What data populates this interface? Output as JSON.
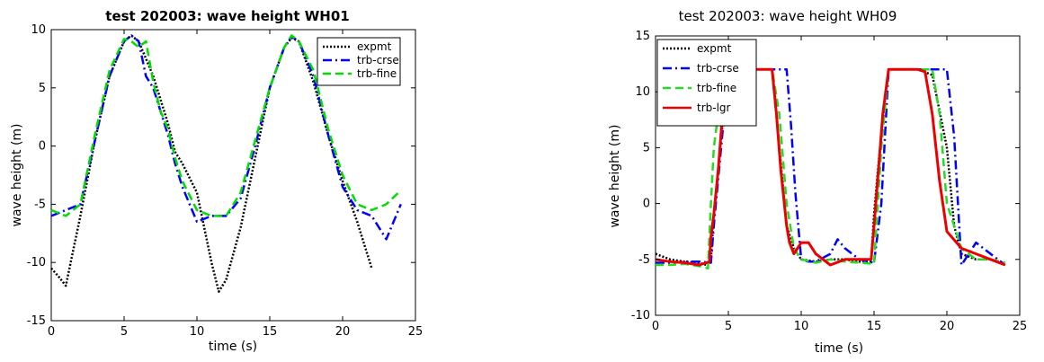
{
  "chart_data": [
    {
      "type": "line",
      "title": "test 202003: wave height WH01",
      "xlabel": "time (s)",
      "ylabel": "wave height (m)",
      "xlim": [
        0,
        25
      ],
      "ylim": [
        -15,
        10
      ],
      "xticks": [
        0,
        5,
        10,
        15,
        20,
        25
      ],
      "yticks": [
        -15,
        -10,
        -5,
        0,
        5,
        10
      ],
      "legend_position": "top-right",
      "series": [
        {
          "name": "expmt",
          "color": "#000000",
          "dash": "dot",
          "x": [
            0,
            0.5,
            1.0,
            1.5,
            2.0,
            3.0,
            4.0,
            5.0,
            5.5,
            6.0,
            7.0,
            8.0,
            8.5,
            9.0,
            10.0,
            11.0,
            11.5,
            12.0,
            13.0,
            14.0,
            15.0,
            16.0,
            16.5,
            17.0,
            18.0,
            19.0,
            20.0,
            21.0,
            22.0
          ],
          "y": [
            -10.5,
            -11.2,
            -12.0,
            -9.0,
            -6.0,
            0.5,
            6.0,
            9.0,
            9.5,
            9.0,
            6.0,
            2.0,
            -0.5,
            -1.5,
            -4.0,
            -10.0,
            -12.5,
            -11.5,
            -7.0,
            -1.0,
            5.0,
            8.5,
            9.3,
            9.0,
            5.5,
            1.0,
            -3.0,
            -6.5,
            -10.5
          ]
        },
        {
          "name": "trb-crse",
          "color": "#0000ff",
          "dash": "dashdot",
          "x": [
            0,
            1.0,
            2.0,
            3.0,
            4.0,
            5.0,
            5.5,
            6.0,
            6.5,
            7.0,
            7.5,
            8.0,
            8.5,
            9.0,
            10.0,
            11.0,
            12.0,
            13.0,
            14.0,
            15.0,
            16.0,
            16.5,
            17.0,
            18.0,
            19.0,
            20.0,
            21.0,
            22.0,
            23.0,
            24.0
          ],
          "y": [
            -6.0,
            -5.5,
            -5.0,
            0.5,
            6.0,
            9.0,
            9.5,
            9.0,
            6.0,
            5.0,
            3.0,
            1.0,
            -1.5,
            -3.5,
            -6.5,
            -6.0,
            -6.0,
            -4.5,
            0.0,
            5.0,
            8.5,
            9.4,
            9.0,
            6.0,
            1.0,
            -3.5,
            -5.5,
            -6.0,
            -8.0,
            -5.0
          ]
        },
        {
          "name": "trb-fine",
          "color": "#00dd00",
          "dash": "dash",
          "x": [
            0,
            1.0,
            2.0,
            3.0,
            4.0,
            5.0,
            5.5,
            6.0,
            6.5,
            7.0,
            7.5,
            8.0,
            8.5,
            9.0,
            10.0,
            11.0,
            12.0,
            13.0,
            14.0,
            15.0,
            16.0,
            16.5,
            17.0,
            18.0,
            19.0,
            20.0,
            21.0,
            22.0,
            23.0,
            24.0
          ],
          "y": [
            -5.5,
            -6.0,
            -5.0,
            1.0,
            6.5,
            9.2,
            9.0,
            8.5,
            9.0,
            5.5,
            3.0,
            1.5,
            -1.0,
            -3.0,
            -5.5,
            -6.0,
            -6.0,
            -4.0,
            0.5,
            5.0,
            8.5,
            9.5,
            9.0,
            6.5,
            1.5,
            -2.5,
            -5.0,
            -5.5,
            -5.0,
            -3.8
          ]
        }
      ]
    },
    {
      "type": "line",
      "title": "test 202003: wave height WH09",
      "xlabel": "time (s)",
      "ylabel": "wave height (m)",
      "xlim": [
        0,
        25
      ],
      "ylim": [
        -10,
        15
      ],
      "xticks": [
        0,
        5,
        10,
        15,
        20,
        25
      ],
      "yticks": [
        -10,
        -5,
        0,
        5,
        10,
        15
      ],
      "legend_position": "top-left",
      "series": [
        {
          "name": "expmt",
          "color": "#000000",
          "dash": "dot",
          "x": [
            0,
            1,
            2,
            3,
            3.5,
            3.8,
            4.0,
            4.3,
            4.8,
            5.0,
            6.0,
            7.0,
            8.0,
            8.5,
            9.0,
            9.5,
            10.0,
            11.0,
            12.0,
            13.0,
            14.0,
            14.8,
            15.0,
            15.3,
            15.8,
            16.0,
            17.0,
            18.0,
            19.0,
            20.0,
            20.5,
            21.0,
            22.0,
            23.0,
            24.0
          ],
          "y": [
            -4.5,
            -5.0,
            -5.2,
            -5.3,
            -5.5,
            -5.0,
            -1.0,
            3.0,
            10.0,
            12.0,
            12.0,
            12.0,
            12.0,
            5.0,
            -2.0,
            -4.0,
            -5.0,
            -5.2,
            -5.0,
            -5.0,
            -5.2,
            -5.2,
            -1.0,
            3.5,
            10.0,
            12.0,
            12.0,
            12.0,
            11.5,
            5.0,
            -2.0,
            -4.5,
            -5.0,
            -5.0,
            -5.5
          ]
        },
        {
          "name": "trb-crse",
          "color": "#0000ff",
          "dash": "dashdot",
          "x": [
            0,
            1,
            2,
            3,
            3.8,
            4.0,
            4.5,
            5.0,
            6.0,
            7.0,
            8.0,
            9.0,
            9.3,
            9.6,
            10.0,
            10.5,
            11.0,
            12.0,
            12.5,
            13.0,
            14.0,
            15.0,
            15.5,
            16.0,
            17.0,
            18.0,
            19.0,
            20.0,
            20.5,
            21.0,
            22.0,
            23.0,
            24.0
          ],
          "y": [
            -5.3,
            -5.3,
            -5.2,
            -5.2,
            -5.3,
            -2.0,
            5.0,
            12.0,
            12.0,
            12.0,
            12.0,
            12.0,
            7.0,
            1.0,
            -5.0,
            -5.2,
            -5.2,
            -4.5,
            -3.2,
            -4.0,
            -5.0,
            -5.3,
            0.0,
            12.0,
            12.0,
            12.0,
            12.0,
            12.0,
            6.0,
            -5.5,
            -3.5,
            -4.5,
            -5.5
          ]
        },
        {
          "name": "trb-fine",
          "color": "#22dd22",
          "dash": "dash",
          "x": [
            0,
            1,
            2,
            3,
            3.6,
            3.8,
            4.0,
            4.5,
            5.0,
            6.0,
            7.0,
            8.0,
            8.5,
            9.0,
            9.5,
            10.0,
            11.0,
            12.0,
            13.0,
            14.0,
            15.0,
            15.5,
            16.0,
            17.0,
            18.0,
            19.0,
            19.5,
            20.0,
            21.0,
            22.0,
            23.0,
            24.0
          ],
          "y": [
            -5.5,
            -5.5,
            -5.4,
            -5.6,
            -5.8,
            0.0,
            5.0,
            10.0,
            12.0,
            12.0,
            12.0,
            12.0,
            8.0,
            0.0,
            -4.0,
            -5.0,
            -5.3,
            -5.0,
            -5.2,
            -5.3,
            -5.4,
            5.0,
            12.0,
            12.0,
            12.0,
            12.0,
            8.0,
            0.0,
            -4.0,
            -5.0,
            -5.0,
            -5.3
          ]
        },
        {
          "name": "trb-lgr",
          "color": "#ee0000",
          "dash": "solid",
          "x": [
            0,
            1,
            2,
            3,
            3.7,
            3.8,
            4.0,
            4.3,
            4.6,
            5.0,
            6.0,
            7.0,
            8.0,
            8.3,
            8.6,
            9.0,
            9.2,
            9.5,
            10.0,
            10.5,
            11.0,
            11.5,
            12.0,
            13.0,
            14.0,
            14.8,
            15.0,
            15.3,
            15.6,
            16.0,
            17.0,
            18.0,
            18.5,
            19.0,
            19.5,
            20.0,
            21.0,
            22.0,
            23.0,
            24.0
          ],
          "y": [
            -5.0,
            -5.2,
            -5.3,
            -5.5,
            -5.2,
            -3.0,
            -1.0,
            3.0,
            8.0,
            12.0,
            12.0,
            12.0,
            12.0,
            8.0,
            3.0,
            -2.0,
            -3.5,
            -4.5,
            -3.5,
            -3.5,
            -4.5,
            -5.0,
            -5.5,
            -5.0,
            -5.0,
            -5.0,
            -2.0,
            3.0,
            8.0,
            12.0,
            12.0,
            12.0,
            11.8,
            8.0,
            2.0,
            -2.5,
            -4.0,
            -4.5,
            -5.0,
            -5.5
          ]
        }
      ]
    }
  ]
}
